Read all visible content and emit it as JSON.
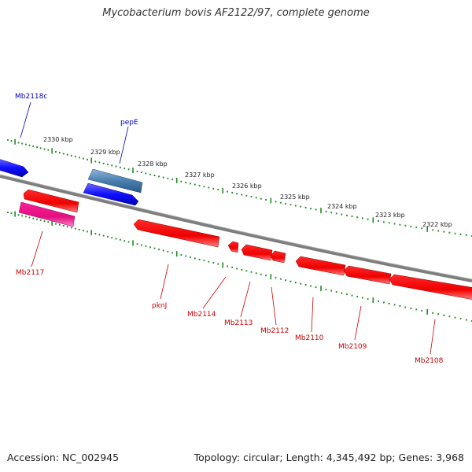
{
  "title": "Mycobacterium bovis AF2122/97, complete genome",
  "footer": {
    "accession": "Accession: NC_002945",
    "topology": "Topology: circular; Length: 4,345,492 bp; Genes: 3,968"
  },
  "ruler": {
    "unit": "kbp",
    "labels": [
      "2330 kbp",
      "2329 kbp",
      "2328 kbp",
      "2327 kbp",
      "2326 kbp",
      "2325 kbp",
      "2324 kbp",
      "2323 kbp",
      "2322 kbp"
    ]
  },
  "genes": [
    {
      "name": "Mb2118c",
      "strand": "reverse",
      "color": "#1a1aff"
    },
    {
      "name": "pepE",
      "strand": "reverse",
      "color": "#1a1aff"
    },
    {
      "name": "",
      "strand": "reverse",
      "color": "#4682b4"
    },
    {
      "name": "Mb2117",
      "strand": "forward",
      "color": "#ff1493"
    },
    {
      "name": "",
      "strand": "forward",
      "color": "#ff0000"
    },
    {
      "name": "pknJ",
      "strand": "forward",
      "color": "#ff0000"
    },
    {
      "name": "Mb2114",
      "strand": "forward",
      "color": "#ff0000"
    },
    {
      "name": "Mb2113",
      "strand": "forward",
      "color": "#ff0000"
    },
    {
      "name": "Mb2112",
      "strand": "forward",
      "color": "#ff0000"
    },
    {
      "name": "Mb2110",
      "strand": "forward",
      "color": "#ff0000"
    },
    {
      "name": "Mb2109",
      "strand": "forward",
      "color": "#ff0000"
    },
    {
      "name": "Mb2108",
      "strand": "forward",
      "color": "#ff0000"
    }
  ],
  "colors": {
    "backbone": "#808080",
    "ticks": "#228b22",
    "reverse_label": "#0000cc",
    "forward_label": "#cc0000"
  }
}
